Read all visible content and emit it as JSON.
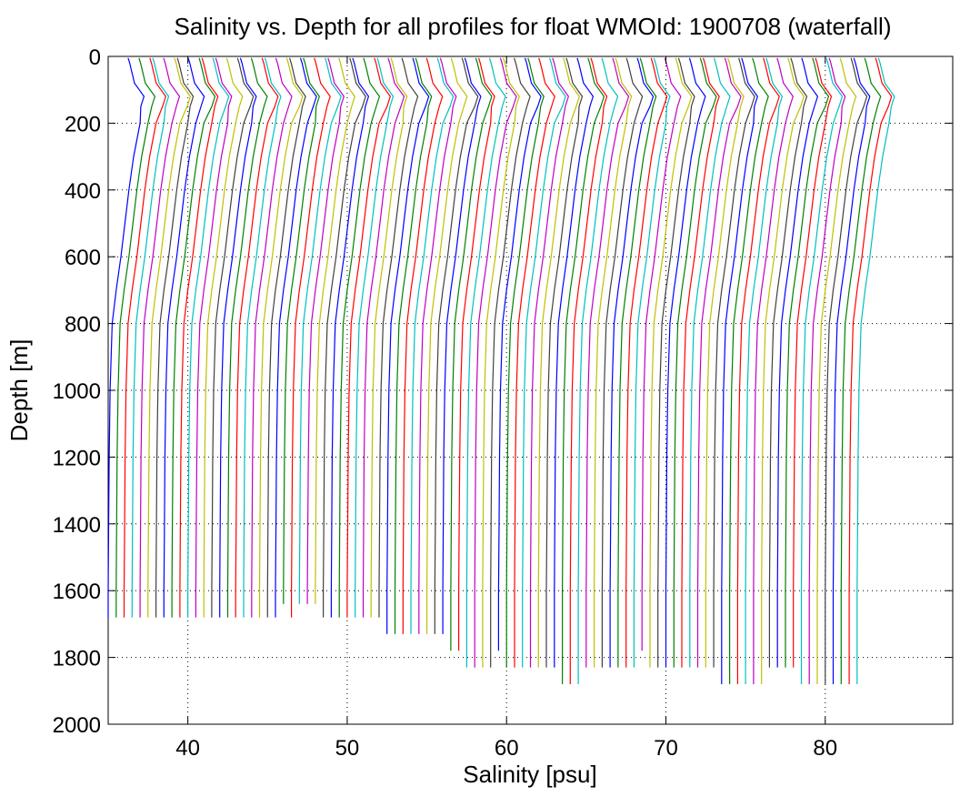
{
  "chart_data": {
    "type": "line",
    "title": "Salinity vs. Depth for all profiles for float WMOId: 1900708 (waterfall)",
    "xlabel": "Salinity [psu]",
    "ylabel": "Depth [m]",
    "xlim": [
      35,
      88
    ],
    "ylim": [
      0,
      2000
    ],
    "y_reversed": true,
    "grid": "dotted",
    "legend": "none",
    "xticks": [
      40,
      50,
      60,
      70,
      80
    ],
    "yticks": [
      0,
      200,
      400,
      600,
      800,
      1000,
      1200,
      1400,
      1600,
      1800,
      2000
    ],
    "profile_count": 95,
    "profile_offset_step_psu": 0.5,
    "base_salinity_deep_psu": 35.0,
    "series_colors": [
      "#0000ff",
      "#008000",
      "#ff0000",
      "#00bfbf",
      "#bf00bf",
      "#bfbf00",
      "#404040"
    ],
    "profile_shape": {
      "depth_m": [
        5,
        20,
        40,
        60,
        80,
        100,
        120,
        150,
        200,
        300,
        400,
        500,
        600,
        700,
        800,
        1000,
        1200,
        1400,
        1600
      ],
      "offset_from_deep_psu": [
        1.5,
        1.6,
        1.7,
        1.8,
        1.9,
        2.2,
        2.5,
        2.3,
        2.0,
        1.6,
        1.3,
        1.05,
        0.8,
        0.5,
        0.25,
        0.12,
        0.06,
        0.03,
        0.0
      ]
    },
    "profile_bottom_depths_m": [
      1680,
      1680,
      1680,
      1680,
      1680,
      1680,
      1680,
      1680,
      1680,
      1680,
      1680,
      1680,
      1680,
      1680,
      1680,
      1680,
      1680,
      1680,
      1680,
      1680,
      1680,
      1680,
      1640,
      1680,
      1640,
      1640,
      1640,
      1680,
      1680,
      1680,
      1680,
      1680,
      1680,
      1680,
      1680,
      1730,
      1730,
      1730,
      1730,
      1730,
      1730,
      1730,
      1730,
      1780,
      1780,
      1830,
      1830,
      1830,
      1830,
      1780,
      1830,
      1830,
      1830,
      1830,
      1830,
      1830,
      1830,
      1880,
      1880,
      1880,
      1830,
      1830,
      1830,
      1830,
      1830,
      1830,
      1830,
      1780,
      1830,
      1830,
      1830,
      1830,
      1830,
      1830,
      1830,
      1830,
      1830,
      1880,
      1880,
      1880,
      1880,
      1880,
      1880,
      1830,
      1830,
      1830,
      1830,
      1880,
      1880,
      1880,
      1880,
      1880,
      1880,
      1880,
      1880
    ]
  }
}
